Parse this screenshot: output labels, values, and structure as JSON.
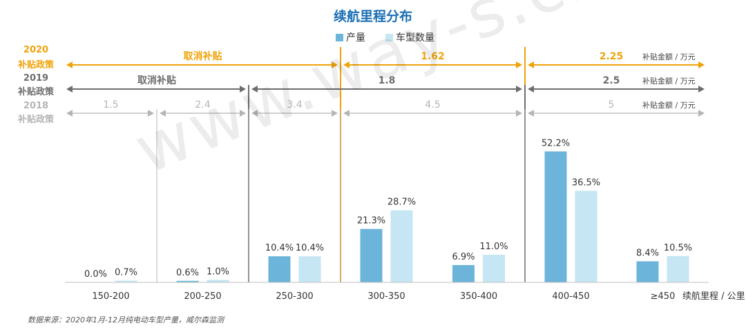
{
  "chart_data": {
    "type": "bar",
    "title": "续航里程分布",
    "categories": [
      "150-200",
      "200-250",
      "250-300",
      "300-350",
      "350-400",
      "400-450",
      "≥450"
    ],
    "series": [
      {
        "name": "产量",
        "color": "#6cb4d9",
        "values": [
          0.0,
          0.6,
          10.4,
          21.3,
          6.9,
          52.2,
          8.4
        ],
        "labels": [
          "0.0%",
          "0.6%",
          "10.4%",
          "21.3%",
          "6.9%",
          "52.2%",
          "8.4%"
        ]
      },
      {
        "name": "车型数量",
        "color": "#c5e6f2",
        "values": [
          0.7,
          1.0,
          10.4,
          28.7,
          11.0,
          36.5,
          10.5
        ],
        "labels": [
          "0.7%",
          "1.0%",
          "10.4%",
          "28.7%",
          "11.0%",
          "36.5%",
          "10.5%"
        ]
      }
    ],
    "ylim": [
      0,
      60
    ],
    "xlabel": "续航里程 / 公里",
    "legend": "top-center",
    "grid": false,
    "policies": [
      {
        "label_year": "2020",
        "label_text": "补贴政策",
        "color": "#f0a30a",
        "unit": "补贴金额 / 万元",
        "segments": [
          {
            "from": 0,
            "to": 3,
            "label": "取消补贴"
          },
          {
            "from": 3,
            "to": 5,
            "label": "1.62"
          },
          {
            "from": 5,
            "to": 7,
            "label": "2.25"
          }
        ]
      },
      {
        "label_year": "2019",
        "label_text": "补贴政策",
        "color": "#6d6d6d",
        "unit": "补贴金额 / 万元",
        "segments": [
          {
            "from": 0,
            "to": 2,
            "label": "取消补贴"
          },
          {
            "from": 2,
            "to": 5,
            "label": "1.8"
          },
          {
            "from": 5,
            "to": 7,
            "label": "2.5"
          }
        ]
      },
      {
        "label_year": "2018",
        "label_text": "补贴政策",
        "color": "#b5b5b5",
        "unit": "补贴金额 / 万元",
        "segments": [
          {
            "from": 0,
            "to": 1,
            "label": "1.5"
          },
          {
            "from": 1,
            "to": 2,
            "label": "2.4"
          },
          {
            "from": 2,
            "to": 3,
            "label": "3.4"
          },
          {
            "from": 3,
            "to": 5,
            "label": "4.5"
          },
          {
            "from": 5,
            "to": 7,
            "label": "5"
          }
        ]
      }
    ],
    "colors": {
      "title": "#1a6fb5",
      "axis": "#bfbfbf",
      "label": "#333333"
    }
  },
  "watermark": "www.way-s.cn",
  "source_note": "数据来源：2020年1月-12月纯电动车型产量，威尔森监测"
}
